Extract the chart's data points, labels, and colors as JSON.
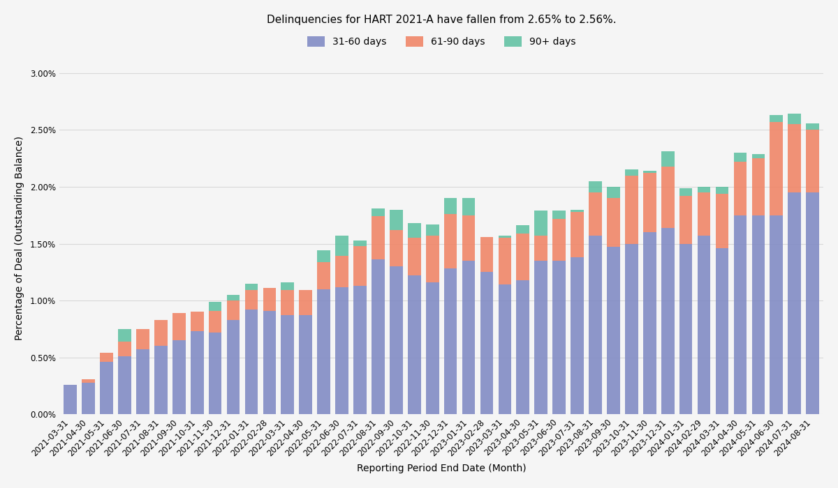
{
  "title": "Delinquencies for HART 2021-A have fallen from 2.65% to 2.56%.",
  "xlabel": "Reporting Period End Date (Month)",
  "ylabel": "Percentage of Deal (Outstanding Balance)",
  "categories": [
    "2021-03-31",
    "2021-04-30",
    "2021-05-31",
    "2021-06-30",
    "2021-07-31",
    "2021-08-31",
    "2021-09-30",
    "2021-10-31",
    "2021-11-30",
    "2021-12-31",
    "2022-01-31",
    "2022-02-28",
    "2022-03-31",
    "2022-04-30",
    "2022-05-31",
    "2022-06-30",
    "2022-07-31",
    "2022-08-31",
    "2022-09-30",
    "2022-10-31",
    "2022-11-30",
    "2022-12-31",
    "2023-01-31",
    "2023-02-28",
    "2023-03-31",
    "2023-04-30",
    "2023-05-31",
    "2023-06-30",
    "2023-07-31",
    "2023-08-31",
    "2023-09-30",
    "2023-10-31",
    "2023-11-30",
    "2023-12-31",
    "2024-01-31",
    "2024-02-29",
    "2024-03-31",
    "2024-04-30",
    "2024-05-31",
    "2024-06-30",
    "2024-07-31",
    "2024-08-31"
  ],
  "d31_60": [
    0.0026,
    0.0028,
    0.0046,
    0.0051,
    0.0057,
    0.006,
    0.0065,
    0.0073,
    0.0072,
    0.0083,
    0.0092,
    0.0091,
    0.0087,
    0.0087,
    0.011,
    0.0112,
    0.0113,
    0.0136,
    0.013,
    0.0122,
    0.0116,
    0.0128,
    0.0135,
    0.0125,
    0.0114,
    0.0118,
    0.0135,
    0.0135,
    0.0138,
    0.0157,
    0.0147,
    0.015,
    0.016,
    0.0164,
    0.015,
    0.0157,
    0.0146,
    0.0175,
    0.0175,
    0.0175,
    0.0195,
    0.0195
  ],
  "d61_90": [
    0.0,
    0.0003,
    0.0008,
    0.0013,
    0.0018,
    0.0023,
    0.0024,
    0.0017,
    0.0019,
    0.0017,
    0.0017,
    0.002,
    0.0022,
    0.0022,
    0.0024,
    0.0027,
    0.0035,
    0.0038,
    0.0032,
    0.0033,
    0.0041,
    0.0048,
    0.004,
    0.0031,
    0.0041,
    0.0041,
    0.0022,
    0.0037,
    0.004,
    0.0038,
    0.0043,
    0.006,
    0.0052,
    0.0054,
    0.0042,
    0.0038,
    0.0048,
    0.0047,
    0.005,
    0.0082,
    0.006,
    0.0055
  ],
  "d90_plus": [
    0.0,
    0.0,
    0.0,
    0.0011,
    0.0,
    0.0,
    0.0,
    0.0,
    0.0008,
    0.0005,
    0.0006,
    0.0,
    0.0007,
    0.0,
    0.001,
    0.0018,
    0.0005,
    0.0007,
    0.0018,
    0.0013,
    0.001,
    0.0014,
    0.0015,
    0.0,
    0.0002,
    0.0007,
    0.0022,
    0.0007,
    0.0002,
    0.001,
    0.001,
    0.0005,
    0.0002,
    0.0013,
    0.0007,
    0.0005,
    0.0006,
    0.0008,
    0.0004,
    0.0006,
    0.0009,
    0.0006
  ],
  "color_31_60": "#7b86c2",
  "color_61_90": "#f08060",
  "color_90_plus": "#5bbf9f",
  "ylim_max": 0.031,
  "yticks": [
    0.0,
    0.005,
    0.01,
    0.015,
    0.02,
    0.025,
    0.03
  ],
  "ytick_labels": [
    "0.00%",
    "0.50%",
    "1.00%",
    "1.50%",
    "2.00%",
    "2.50%",
    "3.00%"
  ],
  "bg_color": "#f5f5f5",
  "grid_color": "#d8d8d8",
  "title_fontsize": 11,
  "label_fontsize": 10,
  "tick_fontsize": 8.5,
  "legend_fontsize": 10
}
